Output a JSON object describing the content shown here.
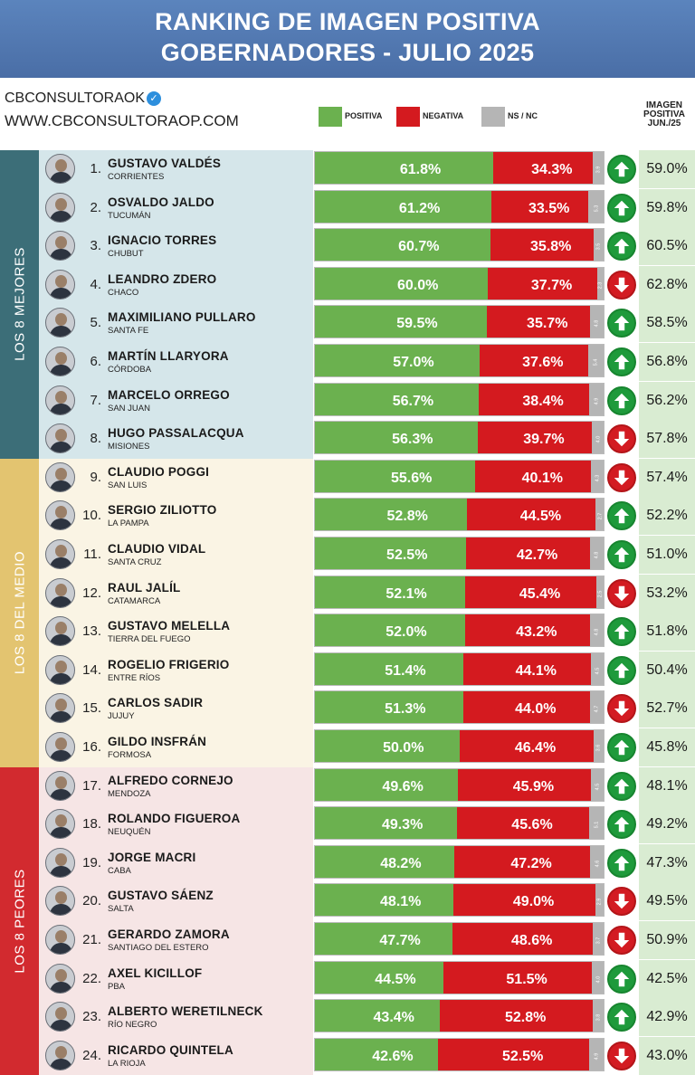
{
  "title_lines": [
    "RANKING DE IMAGEN POSITIVA",
    "GOBERNADORES - JULIO 2025"
  ],
  "brand": {
    "handle": "CBCONSULTORAOK",
    "site": "WWW.CBCONSULTORAOP.COM"
  },
  "legend": [
    {
      "label": "POSITIVA",
      "color": "#6bb14f"
    },
    {
      "label": "NEGATIVA",
      "color": "#d41a1f"
    },
    {
      "label": "NS / NC",
      "color": "#b5b5b5"
    }
  ],
  "prev_column_header": [
    "IMAGEN",
    "POSITIVA",
    "JUN./25"
  ],
  "groups": [
    {
      "label": "LOS 8 MEJORES",
      "color": "#3c6e78",
      "fill": "#d5e6ea"
    },
    {
      "label": "LOS 8 DEL MEDIO",
      "color": "#e3c470",
      "fill": "#faf4e4"
    },
    {
      "label": "LOS 8 PEORES",
      "color": "#d22a2f",
      "fill": "#f6e5e5"
    }
  ],
  "chart_data": {
    "type": "bar",
    "stacked": true,
    "orientation": "horizontal",
    "categories": [
      "GUSTAVO VALDÉS",
      "OSVALDO JALDO",
      "IGNACIO TORRES",
      "LEANDRO ZDERO",
      "MAXIMILIANO PULLARO",
      "MARTÍN LLARYORA",
      "MARCELO ORREGO",
      "HUGO PASSALACQUA",
      "CLAUDIO POGGI",
      "SERGIO ZILIOTTO",
      "CLAUDIO VIDAL",
      "RAUL JALÍL",
      "GUSTAVO MELELLA",
      "ROGELIO FRIGERIO",
      "CARLOS SADIR",
      "GILDO INSFRÁN",
      "ALFREDO CORNEJO",
      "ROLANDO FIGUEROA",
      "JORGE MACRI",
      "GUSTAVO SÁENZ",
      "GERARDO ZAMORA",
      "AXEL KICILLOF",
      "ALBERTO WERETILNECK",
      "RICARDO QUINTELA"
    ],
    "series": [
      {
        "name": "POSITIVA",
        "values": [
          61.8,
          61.2,
          60.7,
          60.0,
          59.5,
          57.0,
          56.7,
          56.3,
          55.6,
          52.8,
          52.5,
          52.1,
          52.0,
          51.4,
          51.3,
          50.0,
          49.6,
          49.3,
          48.2,
          48.1,
          47.7,
          44.5,
          43.4,
          42.6
        ]
      },
      {
        "name": "NEGATIVA",
        "values": [
          34.3,
          33.5,
          35.8,
          37.7,
          35.7,
          37.6,
          38.4,
          39.7,
          40.1,
          44.5,
          42.7,
          45.4,
          43.2,
          44.1,
          44.0,
          46.4,
          45.9,
          45.6,
          47.2,
          49.0,
          48.6,
          51.5,
          52.8,
          52.5
        ]
      },
      {
        "name": "NS / NC",
        "values": [
          3.9,
          5.3,
          3.5,
          2.3,
          4.8,
          5.4,
          4.9,
          4.0,
          4.3,
          2.7,
          4.8,
          2.5,
          4.8,
          4.5,
          4.7,
          3.6,
          4.5,
          5.1,
          4.6,
          2.9,
          3.7,
          4.0,
          3.8,
          4.9
        ]
      }
    ],
    "xlim": [
      0,
      100
    ],
    "rows": [
      {
        "rank": "1.",
        "name": "GUSTAVO VALDÉS",
        "province": "CORRIENTES",
        "positiva": 61.8,
        "negativa": 34.3,
        "nsnc": 3.9,
        "trend": "up",
        "prev": 59.0
      },
      {
        "rank": "2.",
        "name": "OSVALDO JALDO",
        "province": "TUCUMÁN",
        "positiva": 61.2,
        "negativa": 33.5,
        "nsnc": 5.3,
        "trend": "up",
        "prev": 59.8
      },
      {
        "rank": "3.",
        "name": "IGNACIO TORRES",
        "province": "CHUBUT",
        "positiva": 60.7,
        "negativa": 35.8,
        "nsnc": 3.5,
        "trend": "up",
        "prev": 60.5
      },
      {
        "rank": "4.",
        "name": "LEANDRO ZDERO",
        "province": "CHACO",
        "positiva": 60.0,
        "negativa": 37.7,
        "nsnc": 2.3,
        "trend": "down",
        "prev": 62.8
      },
      {
        "rank": "5.",
        "name": "MAXIMILIANO PULLARO",
        "province": "SANTA FE",
        "positiva": 59.5,
        "negativa": 35.7,
        "nsnc": 4.8,
        "trend": "up",
        "prev": 58.5
      },
      {
        "rank": "6.",
        "name": "MARTÍN LLARYORA",
        "province": "CÓRDOBA",
        "positiva": 57.0,
        "negativa": 37.6,
        "nsnc": 5.4,
        "trend": "up",
        "prev": 56.8
      },
      {
        "rank": "7.",
        "name": "MARCELO ORREGO",
        "province": "SAN JUAN",
        "positiva": 56.7,
        "negativa": 38.4,
        "nsnc": 4.9,
        "trend": "up",
        "prev": 56.2
      },
      {
        "rank": "8.",
        "name": "HUGO PASSALACQUA",
        "province": "MISIONES",
        "positiva": 56.3,
        "negativa": 39.7,
        "nsnc": 4.0,
        "trend": "down",
        "prev": 57.8
      },
      {
        "rank": "9.",
        "name": "CLAUDIO POGGI",
        "province": "SAN LUIS",
        "positiva": 55.6,
        "negativa": 40.1,
        "nsnc": 4.3,
        "trend": "down",
        "prev": 57.4
      },
      {
        "rank": "10.",
        "name": "SERGIO ZILIOTTO",
        "province": "LA PAMPA",
        "positiva": 52.8,
        "negativa": 44.5,
        "nsnc": 2.7,
        "trend": "up",
        "prev": 52.2
      },
      {
        "rank": "11.",
        "name": "CLAUDIO VIDAL",
        "province": "SANTA CRUZ",
        "positiva": 52.5,
        "negativa": 42.7,
        "nsnc": 4.8,
        "trend": "up",
        "prev": 51.0
      },
      {
        "rank": "12.",
        "name": "RAUL JALÍL",
        "province": "CATAMARCA",
        "positiva": 52.1,
        "negativa": 45.4,
        "nsnc": 2.5,
        "trend": "down",
        "prev": 53.2
      },
      {
        "rank": "13.",
        "name": "GUSTAVO MELELLA",
        "province": "TIERRA DEL FUEGO",
        "positiva": 52.0,
        "negativa": 43.2,
        "nsnc": 4.8,
        "trend": "up",
        "prev": 51.8
      },
      {
        "rank": "14.",
        "name": "ROGELIO FRIGERIO",
        "province": "ENTRE RÍOS",
        "positiva": 51.4,
        "negativa": 44.1,
        "nsnc": 4.5,
        "trend": "up",
        "prev": 50.4
      },
      {
        "rank": "15.",
        "name": "CARLOS SADIR",
        "province": "JUJUY",
        "positiva": 51.3,
        "negativa": 44.0,
        "nsnc": 4.7,
        "trend": "down",
        "prev": 52.7
      },
      {
        "rank": "16.",
        "name": "GILDO INSFRÁN",
        "province": "FORMOSA",
        "positiva": 50.0,
        "negativa": 46.4,
        "nsnc": 3.6,
        "trend": "up",
        "prev": 45.8
      },
      {
        "rank": "17.",
        "name": "ALFREDO CORNEJO",
        "province": "MENDOZA",
        "positiva": 49.6,
        "negativa": 45.9,
        "nsnc": 4.5,
        "trend": "up",
        "prev": 48.1
      },
      {
        "rank": "18.",
        "name": "ROLANDO FIGUEROA",
        "province": "NEUQUÉN",
        "positiva": 49.3,
        "negativa": 45.6,
        "nsnc": 5.1,
        "trend": "up",
        "prev": 49.2
      },
      {
        "rank": "19.",
        "name": "JORGE MACRI",
        "province": "CABA",
        "positiva": 48.2,
        "negativa": 47.2,
        "nsnc": 4.6,
        "trend": "up",
        "prev": 47.3
      },
      {
        "rank": "20.",
        "name": "GUSTAVO SÁENZ",
        "province": "SALTA",
        "positiva": 48.1,
        "negativa": 49.0,
        "nsnc": 2.9,
        "trend": "down",
        "prev": 49.5
      },
      {
        "rank": "21.",
        "name": "GERARDO ZAMORA",
        "province": "SANTIAGO DEL ESTERO",
        "positiva": 47.7,
        "negativa": 48.6,
        "nsnc": 3.7,
        "trend": "down",
        "prev": 50.9
      },
      {
        "rank": "22.",
        "name": "AXEL KICILLOF",
        "province": "PBA",
        "positiva": 44.5,
        "negativa": 51.5,
        "nsnc": 4.0,
        "trend": "up",
        "prev": 42.5
      },
      {
        "rank": "23.",
        "name": "ALBERTO WERETILNECK",
        "province": "RÍO NEGRO",
        "positiva": 43.4,
        "negativa": 52.8,
        "nsnc": 3.8,
        "trend": "up",
        "prev": 42.9
      },
      {
        "rank": "24.",
        "name": "RICARDO QUINTELA",
        "province": "LA RIOJA",
        "positiva": 42.6,
        "negativa": 52.5,
        "nsnc": 4.9,
        "trend": "down",
        "prev": 43.0
      }
    ]
  }
}
